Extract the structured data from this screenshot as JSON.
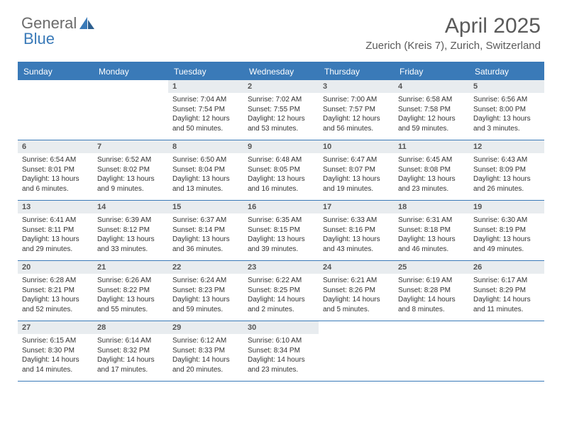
{
  "brand": {
    "part1": "General",
    "part2": "Blue"
  },
  "title": "April 2025",
  "location": "Zuerich (Kreis 7), Zurich, Switzerland",
  "colors": {
    "header_blue": "#3a7ab8",
    "day_header_bg": "#e8ecef",
    "text_gray": "#5a5a5a",
    "body_text": "#333333",
    "background": "#ffffff"
  },
  "typography": {
    "title_fontsize": 30,
    "location_fontsize": 15,
    "weekday_fontsize": 12,
    "daynum_fontsize": 11,
    "content_fontsize": 10
  },
  "weekdays": [
    "Sunday",
    "Monday",
    "Tuesday",
    "Wednesday",
    "Thursday",
    "Friday",
    "Saturday"
  ],
  "weeks": [
    [
      {
        "empty": true
      },
      {
        "empty": true
      },
      {
        "num": "1",
        "sunrise": "Sunrise: 7:04 AM",
        "sunset": "Sunset: 7:54 PM",
        "daylight": "Daylight: 12 hours and 50 minutes."
      },
      {
        "num": "2",
        "sunrise": "Sunrise: 7:02 AM",
        "sunset": "Sunset: 7:55 PM",
        "daylight": "Daylight: 12 hours and 53 minutes."
      },
      {
        "num": "3",
        "sunrise": "Sunrise: 7:00 AM",
        "sunset": "Sunset: 7:57 PM",
        "daylight": "Daylight: 12 hours and 56 minutes."
      },
      {
        "num": "4",
        "sunrise": "Sunrise: 6:58 AM",
        "sunset": "Sunset: 7:58 PM",
        "daylight": "Daylight: 12 hours and 59 minutes."
      },
      {
        "num": "5",
        "sunrise": "Sunrise: 6:56 AM",
        "sunset": "Sunset: 8:00 PM",
        "daylight": "Daylight: 13 hours and 3 minutes."
      }
    ],
    [
      {
        "num": "6",
        "sunrise": "Sunrise: 6:54 AM",
        "sunset": "Sunset: 8:01 PM",
        "daylight": "Daylight: 13 hours and 6 minutes."
      },
      {
        "num": "7",
        "sunrise": "Sunrise: 6:52 AM",
        "sunset": "Sunset: 8:02 PM",
        "daylight": "Daylight: 13 hours and 9 minutes."
      },
      {
        "num": "8",
        "sunrise": "Sunrise: 6:50 AM",
        "sunset": "Sunset: 8:04 PM",
        "daylight": "Daylight: 13 hours and 13 minutes."
      },
      {
        "num": "9",
        "sunrise": "Sunrise: 6:48 AM",
        "sunset": "Sunset: 8:05 PM",
        "daylight": "Daylight: 13 hours and 16 minutes."
      },
      {
        "num": "10",
        "sunrise": "Sunrise: 6:47 AM",
        "sunset": "Sunset: 8:07 PM",
        "daylight": "Daylight: 13 hours and 19 minutes."
      },
      {
        "num": "11",
        "sunrise": "Sunrise: 6:45 AM",
        "sunset": "Sunset: 8:08 PM",
        "daylight": "Daylight: 13 hours and 23 minutes."
      },
      {
        "num": "12",
        "sunrise": "Sunrise: 6:43 AM",
        "sunset": "Sunset: 8:09 PM",
        "daylight": "Daylight: 13 hours and 26 minutes."
      }
    ],
    [
      {
        "num": "13",
        "sunrise": "Sunrise: 6:41 AM",
        "sunset": "Sunset: 8:11 PM",
        "daylight": "Daylight: 13 hours and 29 minutes."
      },
      {
        "num": "14",
        "sunrise": "Sunrise: 6:39 AM",
        "sunset": "Sunset: 8:12 PM",
        "daylight": "Daylight: 13 hours and 33 minutes."
      },
      {
        "num": "15",
        "sunrise": "Sunrise: 6:37 AM",
        "sunset": "Sunset: 8:14 PM",
        "daylight": "Daylight: 13 hours and 36 minutes."
      },
      {
        "num": "16",
        "sunrise": "Sunrise: 6:35 AM",
        "sunset": "Sunset: 8:15 PM",
        "daylight": "Daylight: 13 hours and 39 minutes."
      },
      {
        "num": "17",
        "sunrise": "Sunrise: 6:33 AM",
        "sunset": "Sunset: 8:16 PM",
        "daylight": "Daylight: 13 hours and 43 minutes."
      },
      {
        "num": "18",
        "sunrise": "Sunrise: 6:31 AM",
        "sunset": "Sunset: 8:18 PM",
        "daylight": "Daylight: 13 hours and 46 minutes."
      },
      {
        "num": "19",
        "sunrise": "Sunrise: 6:30 AM",
        "sunset": "Sunset: 8:19 PM",
        "daylight": "Daylight: 13 hours and 49 minutes."
      }
    ],
    [
      {
        "num": "20",
        "sunrise": "Sunrise: 6:28 AM",
        "sunset": "Sunset: 8:21 PM",
        "daylight": "Daylight: 13 hours and 52 minutes."
      },
      {
        "num": "21",
        "sunrise": "Sunrise: 6:26 AM",
        "sunset": "Sunset: 8:22 PM",
        "daylight": "Daylight: 13 hours and 55 minutes."
      },
      {
        "num": "22",
        "sunrise": "Sunrise: 6:24 AM",
        "sunset": "Sunset: 8:23 PM",
        "daylight": "Daylight: 13 hours and 59 minutes."
      },
      {
        "num": "23",
        "sunrise": "Sunrise: 6:22 AM",
        "sunset": "Sunset: 8:25 PM",
        "daylight": "Daylight: 14 hours and 2 minutes."
      },
      {
        "num": "24",
        "sunrise": "Sunrise: 6:21 AM",
        "sunset": "Sunset: 8:26 PM",
        "daylight": "Daylight: 14 hours and 5 minutes."
      },
      {
        "num": "25",
        "sunrise": "Sunrise: 6:19 AM",
        "sunset": "Sunset: 8:28 PM",
        "daylight": "Daylight: 14 hours and 8 minutes."
      },
      {
        "num": "26",
        "sunrise": "Sunrise: 6:17 AM",
        "sunset": "Sunset: 8:29 PM",
        "daylight": "Daylight: 14 hours and 11 minutes."
      }
    ],
    [
      {
        "num": "27",
        "sunrise": "Sunrise: 6:15 AM",
        "sunset": "Sunset: 8:30 PM",
        "daylight": "Daylight: 14 hours and 14 minutes."
      },
      {
        "num": "28",
        "sunrise": "Sunrise: 6:14 AM",
        "sunset": "Sunset: 8:32 PM",
        "daylight": "Daylight: 14 hours and 17 minutes."
      },
      {
        "num": "29",
        "sunrise": "Sunrise: 6:12 AM",
        "sunset": "Sunset: 8:33 PM",
        "daylight": "Daylight: 14 hours and 20 minutes."
      },
      {
        "num": "30",
        "sunrise": "Sunrise: 6:10 AM",
        "sunset": "Sunset: 8:34 PM",
        "daylight": "Daylight: 14 hours and 23 minutes."
      },
      {
        "empty": true
      },
      {
        "empty": true
      },
      {
        "empty": true
      }
    ]
  ]
}
